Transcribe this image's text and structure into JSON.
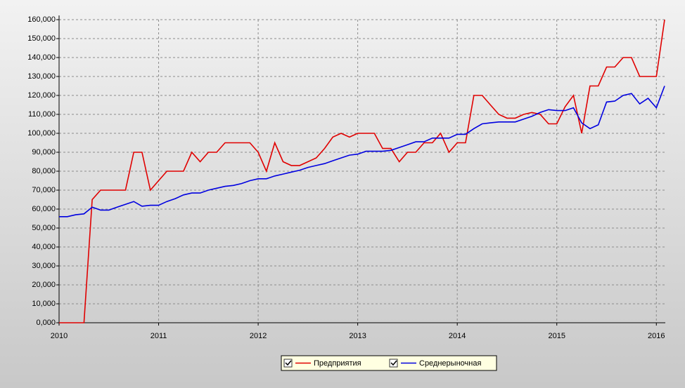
{
  "chart_data": {
    "type": "line",
    "x": [
      2010,
      2010.083,
      2010.167,
      2010.25,
      2010.333,
      2010.417,
      2010.5,
      2010.583,
      2010.667,
      2010.75,
      2010.833,
      2010.917,
      2011,
      2011.083,
      2011.167,
      2011.25,
      2011.333,
      2011.417,
      2011.5,
      2011.583,
      2011.667,
      2011.75,
      2011.833,
      2011.917,
      2012,
      2012.083,
      2012.167,
      2012.25,
      2012.333,
      2012.417,
      2012.5,
      2012.583,
      2012.667,
      2012.75,
      2012.833,
      2012.917,
      2013,
      2013.083,
      2013.167,
      2013.25,
      2013.333,
      2013.417,
      2013.5,
      2013.583,
      2013.667,
      2013.75,
      2013.833,
      2013.917,
      2014,
      2014.083,
      2014.167,
      2014.25,
      2014.333,
      2014.417,
      2014.5,
      2014.583,
      2014.667,
      2014.75,
      2014.833,
      2014.917,
      2015,
      2015.083,
      2015.167,
      2015.25,
      2015.333,
      2015.417,
      2015.5,
      2015.583,
      2015.667,
      2015.75,
      2015.833,
      2015.917,
      2016,
      2016.083
    ],
    "series": [
      {
        "name": "Предприятия",
        "color": "#e00000",
        "values": [
          0,
          0,
          0,
          0,
          65000,
          70000,
          70000,
          70000,
          70000,
          90000,
          90000,
          70000,
          75000,
          80000,
          80000,
          80000,
          90000,
          85000,
          90000,
          90000,
          95000,
          95000,
          95000,
          95000,
          90000,
          80000,
          95000,
          85000,
          83000,
          83000,
          85000,
          87000,
          92000,
          98000,
          100000,
          98000,
          100000,
          100000,
          100000,
          92000,
          92000,
          85000,
          90000,
          90000,
          95000,
          95000,
          100000,
          90000,
          95000,
          95000,
          120000,
          120000,
          115000,
          110000,
          108000,
          108000,
          110000,
          111000,
          110000,
          105000,
          105000,
          114000,
          120000,
          100000,
          125000,
          125000,
          135000,
          135000,
          140000,
          140000,
          130000,
          130000,
          130000,
          160000
        ]
      },
      {
        "name": "Среднерыночная",
        "color": "#0000e0",
        "values": [
          56000,
          56000,
          57000,
          57500,
          61000,
          59500,
          59500,
          61000,
          62500,
          64000,
          61500,
          62000,
          62000,
          64000,
          65500,
          67500,
          68500,
          68500,
          70000,
          71000,
          72000,
          72500,
          73500,
          75000,
          76000,
          76000,
          77500,
          78500,
          79500,
          80500,
          82000,
          83000,
          84000,
          85500,
          87000,
          88500,
          89000,
          90500,
          90500,
          90500,
          91000,
          92500,
          94000,
          95500,
          95500,
          97500,
          97500,
          97500,
          99500,
          99500,
          102500,
          105000,
          105500,
          106000,
          106000,
          106000,
          107500,
          109000,
          111000,
          112500,
          112000,
          112000,
          113500,
          105500,
          102500,
          104500,
          116500,
          117000,
          120000,
          121000,
          115500,
          118500,
          113500,
          125000
        ]
      }
    ],
    "xlim": [
      2010,
      2016.09
    ],
    "xticks": [
      2010,
      2011,
      2012,
      2013,
      2014,
      2015,
      2016
    ],
    "ylim": [
      0,
      160000
    ],
    "yticks": [
      {
        "value": 0,
        "label": "0,000"
      },
      {
        "value": 10000,
        "label": "10,000"
      },
      {
        "value": 20000,
        "label": "20,000"
      },
      {
        "value": 30000,
        "label": "30,000"
      },
      {
        "value": 40000,
        "label": "40,000"
      },
      {
        "value": 50000,
        "label": "50,000"
      },
      {
        "value": 60000,
        "label": "60,000"
      },
      {
        "value": 70000,
        "label": "70,000"
      },
      {
        "value": 80000,
        "label": "80,000"
      },
      {
        "value": 90000,
        "label": "90,000"
      },
      {
        "value": 100000,
        "label": "100,000"
      },
      {
        "value": 110000,
        "label": "110,000"
      },
      {
        "value": 120000,
        "label": "120,000"
      },
      {
        "value": 130000,
        "label": "130,000"
      },
      {
        "value": 140000,
        "label": "140,000"
      },
      {
        "value": 150000,
        "label": "150,000"
      },
      {
        "value": 160000,
        "label": "160,000"
      }
    ],
    "grid": true
  }
}
